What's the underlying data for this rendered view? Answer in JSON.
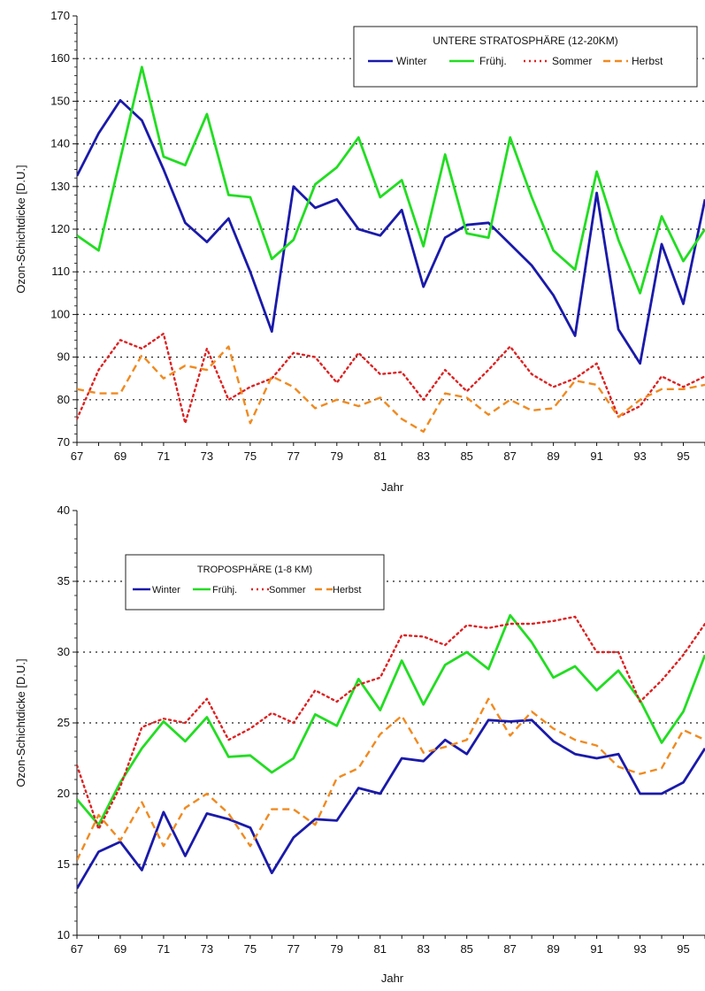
{
  "chart_data": [
    {
      "type": "line",
      "title": "UNTERE STRATOSPHÄRE (12-20KM)",
      "xlabel": "Jahr",
      "ylabel": "Ozon-Schichtdicke  [D.U.]",
      "xlim": [
        67,
        96
      ],
      "ylim": [
        70,
        170
      ],
      "xticks": [
        "67",
        "69",
        "71",
        "73",
        "75",
        "77",
        "79",
        "81",
        "83",
        "85",
        "87",
        "89",
        "91",
        "93",
        "95"
      ],
      "yticks": [
        "70",
        "80",
        "90",
        "100",
        "110",
        "120",
        "130",
        "140",
        "150",
        "160",
        "170"
      ],
      "grid": "dotted horizontal",
      "legend_position": "top-right",
      "x": [
        67,
        68,
        69,
        70,
        71,
        72,
        73,
        74,
        75,
        76,
        77,
        78,
        79,
        80,
        81,
        82,
        83,
        84,
        85,
        86,
        87,
        88,
        89,
        90,
        91,
        92,
        93,
        94,
        95,
        96
      ],
      "series": [
        {
          "name": "Winter",
          "color": "#1a1aaa",
          "style": "solid",
          "values": [
            132.5,
            142.5,
            150.2,
            145.5,
            134,
            121.5,
            117,
            122.5,
            110,
            96,
            130,
            125,
            127,
            120,
            118.5,
            124.5,
            106.5,
            118,
            121,
            121.5,
            116.5,
            111.5,
            104.5,
            95,
            128.5,
            96.5,
            88.5,
            116.5,
            102.5,
            127
          ]
        },
        {
          "name": "Frühj.",
          "color": "#22dd22",
          "style": "solid",
          "values": [
            118.5,
            115,
            136.5,
            158,
            137,
            135,
            147,
            128,
            127.5,
            113,
            117.5,
            130.5,
            134.5,
            141.5,
            127.5,
            131.5,
            116,
            137.5,
            119,
            118,
            141.5,
            127.5,
            115,
            110.5,
            133.5,
            117.5,
            105,
            123,
            112.5,
            120
          ]
        },
        {
          "name": "Sommer",
          "color": "#dd2222",
          "style": "dotted",
          "values": [
            75.5,
            87,
            94,
            92,
            95.5,
            74.5,
            92,
            80,
            83,
            85,
            91,
            90,
            84,
            91,
            86,
            86.5,
            80,
            87,
            82,
            87,
            92.5,
            86,
            83,
            85,
            88.5,
            76,
            78.5,
            85.5,
            83,
            85.5
          ]
        },
        {
          "name": "Herbst",
          "color": "#f08a20",
          "style": "dashed",
          "values": [
            82.5,
            81.5,
            81.5,
            90.5,
            85,
            88,
            87,
            92.5,
            74.5,
            85.5,
            83,
            78,
            80,
            78.5,
            80.5,
            75.5,
            72.5,
            81.5,
            80.5,
            76.5,
            80,
            77.5,
            78,
            84.5,
            83.5,
            76,
            80,
            82.5,
            82.5,
            83.5
          ]
        }
      ]
    },
    {
      "type": "line",
      "title": "TROPOSPHÄRE  (1-8 KM)",
      "xlabel": "Jahr",
      "ylabel": "Ozon-Schichtdicke  [D.U.]",
      "xlim": [
        67,
        96
      ],
      "ylim": [
        10,
        40
      ],
      "xticks": [
        "67",
        "69",
        "71",
        "73",
        "75",
        "77",
        "79",
        "81",
        "83",
        "85",
        "87",
        "89",
        "91",
        "93",
        "95"
      ],
      "yticks": [
        "10",
        "15",
        "20",
        "25",
        "30",
        "35",
        "40"
      ],
      "grid": "dotted horizontal",
      "legend_position": "top-left",
      "x": [
        67,
        68,
        69,
        70,
        71,
        72,
        73,
        74,
        75,
        76,
        77,
        78,
        79,
        80,
        81,
        82,
        83,
        84,
        85,
        86,
        87,
        88,
        89,
        90,
        91,
        92,
        93,
        94,
        95,
        96
      ],
      "series": [
        {
          "name": "Winter",
          "color": "#1a1aaa",
          "style": "solid",
          "values": [
            13.3,
            15.9,
            16.6,
            14.6,
            18.7,
            15.6,
            18.6,
            18.2,
            17.6,
            14.4,
            16.9,
            18.2,
            18.1,
            20.4,
            20,
            22.5,
            22.3,
            23.8,
            22.8,
            25.2,
            25.1,
            25.2,
            23.7,
            22.8,
            22.5,
            22.8,
            20,
            20,
            20.8,
            23.2
          ]
        },
        {
          "name": "Frühj.",
          "color": "#22dd22",
          "style": "solid",
          "values": [
            19.6,
            17.8,
            20.8,
            23.2,
            25.1,
            23.7,
            25.4,
            22.6,
            22.7,
            21.5,
            22.5,
            25.6,
            24.8,
            28.1,
            25.9,
            29.4,
            26.3,
            29.1,
            30,
            28.8,
            32.6,
            30.7,
            28.2,
            29,
            27.3,
            28.7,
            26.6,
            23.6,
            25.8,
            29.8
          ]
        },
        {
          "name": "Sommer",
          "color": "#dd2222",
          "style": "dotted",
          "values": [
            22,
            17.5,
            20.5,
            24.7,
            25.3,
            25,
            26.7,
            23.8,
            24.6,
            25.7,
            25,
            27.3,
            26.5,
            27.7,
            28.2,
            31.2,
            31.1,
            30.5,
            31.9,
            31.7,
            32,
            32,
            32.2,
            32.5,
            30,
            30,
            26.5,
            28,
            29.8,
            32
          ]
        },
        {
          "name": "Herbst",
          "color": "#f08a20",
          "style": "dashed",
          "values": [
            15.3,
            18.5,
            16.7,
            19.4,
            16.3,
            19,
            20,
            18.6,
            16.3,
            18.9,
            18.9,
            17.8,
            21.1,
            21.8,
            24.2,
            25.5,
            22.9,
            23.3,
            23.8,
            26.7,
            24.1,
            25.8,
            24.6,
            23.8,
            23.4,
            21.9,
            21.4,
            21.8,
            24.5,
            23.8
          ]
        }
      ]
    }
  ]
}
